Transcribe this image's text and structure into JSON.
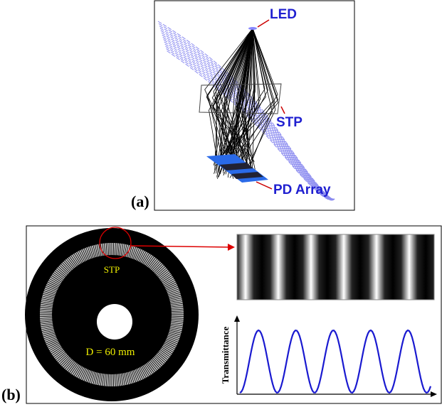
{
  "panel_a": {
    "label": "(a)",
    "led": "LED",
    "stp": "STP",
    "pd_array": "PD Array"
  },
  "panel_b": {
    "label": "(b)",
    "stp": "STP",
    "diameter": "D = 60 mm",
    "y_axis": "Transmittance"
  }
}
